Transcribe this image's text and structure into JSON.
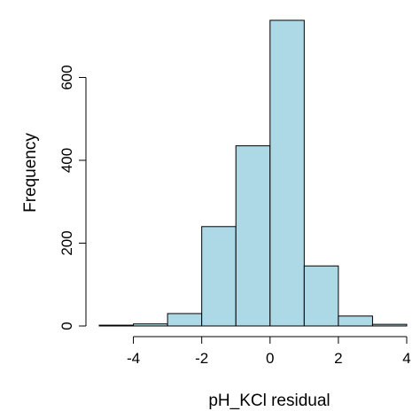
{
  "chart_data": {
    "type": "bar",
    "title": "",
    "xlabel": "pH_KCl residual",
    "ylabel": "Frequency",
    "bin_edges": [
      -5,
      -4,
      -3,
      -2,
      -1,
      0,
      1,
      2,
      3,
      4
    ],
    "values": [
      2,
      5,
      30,
      240,
      435,
      738,
      145,
      24,
      4
    ],
    "xlim": [
      -5,
      4
    ],
    "ylim": [
      0,
      740
    ],
    "x_ticks": [
      -4,
      -2,
      0,
      2,
      4
    ],
    "y_ticks": [
      0,
      200,
      400,
      600
    ],
    "bar_color": "#add8e6",
    "grid": false
  }
}
